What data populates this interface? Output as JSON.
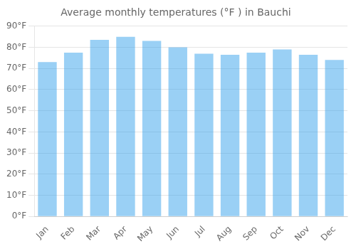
{
  "chart_data": {
    "type": "bar",
    "title": "Average monthly temperatures (°F ) in Bauchi",
    "categories": [
      "Jan",
      "Feb",
      "Mar",
      "Apr",
      "May",
      "Jun",
      "Jul",
      "Aug",
      "Sep",
      "Oct",
      "Nov",
      "Dec"
    ],
    "values": [
      73,
      77.5,
      83.5,
      85,
      83,
      80,
      77,
      76.5,
      77.5,
      79,
      76.5,
      74
    ],
    "ylim": [
      0,
      90
    ],
    "yticks": [
      {
        "value": 0,
        "label": "0°F"
      },
      {
        "value": 10,
        "label": "10°F"
      },
      {
        "value": 20,
        "label": "20°F"
      },
      {
        "value": 30,
        "label": "30°F"
      },
      {
        "value": 40,
        "label": "40°F"
      },
      {
        "value": 50,
        "label": "50°F"
      },
      {
        "value": 60,
        "label": "60°F"
      },
      {
        "value": 70,
        "label": "70°F"
      },
      {
        "value": 80,
        "label": "80°F"
      },
      {
        "value": 90,
        "label": "90°F"
      }
    ],
    "grid": true
  }
}
